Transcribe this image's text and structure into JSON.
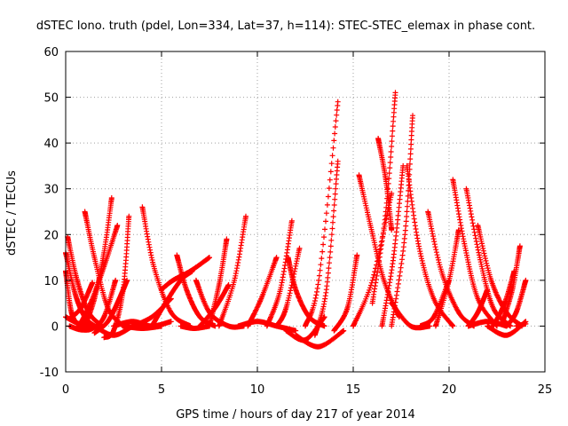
{
  "chart_data": {
    "type": "scatter",
    "title": "dSTEC Iono. truth (pdel, Lon=334, Lat=37, h=114): STEC-STEC_elemax in phase cont.",
    "xlabel": "GPS time / hours of day 217 of year 2014",
    "ylabel": "dSTEC  / TECUs",
    "xlim": [
      0,
      25
    ],
    "ylim": [
      -10,
      60
    ],
    "xticks": [
      0,
      5,
      10,
      15,
      20,
      25
    ],
    "yticks": [
      -10,
      0,
      10,
      20,
      30,
      40,
      50,
      60
    ],
    "grid": true,
    "marker": "plus",
    "color": "#ff0000",
    "arcs": [
      {
        "x": [
          0.0,
          0.3,
          0.7,
          1.2
        ],
        "y": [
          12,
          3,
          0.3,
          0
        ]
      },
      {
        "x": [
          0.0,
          0.5,
          1.0,
          1.5
        ],
        "y": [
          16,
          7,
          2,
          0
        ]
      },
      {
        "x": [
          0.1,
          0.6,
          1.2,
          1.9
        ],
        "y": [
          19.5,
          10,
          3,
          0
        ]
      },
      {
        "x": [
          0.0,
          0.7,
          1.5
        ],
        "y": [
          2,
          0.5,
          0
        ]
      },
      {
        "x": [
          0.2,
          0.8,
          1.4,
          2.0,
          2.6
        ],
        "y": [
          0,
          -0.8,
          -0.5,
          2,
          10
        ]
      },
      {
        "x": [
          0.3,
          0.8,
          1.4
        ],
        "y": [
          2,
          4,
          9.5
        ]
      },
      {
        "x": [
          1.0,
          1.5,
          2.2,
          3.0
        ],
        "y": [
          25,
          15,
          4,
          0
        ]
      },
      {
        "x": [
          0.7,
          1.3,
          2.0,
          2.7
        ],
        "y": [
          0,
          5,
          13,
          22
        ]
      },
      {
        "x": [
          1.5,
          2.2,
          2.8,
          3.2
        ],
        "y": [
          -1.5,
          1,
          6,
          10
        ]
      },
      {
        "x": [
          1.0,
          1.5,
          2.0,
          2.4
        ],
        "y": [
          0,
          6,
          16,
          28
        ]
      },
      {
        "x": [
          2.0,
          2.5,
          3.0,
          3.3
        ],
        "y": [
          -2.5,
          -1,
          8,
          24
        ]
      },
      {
        "x": [
          1.5,
          2.5,
          3.5
        ],
        "y": [
          0,
          -2,
          0
        ]
      },
      {
        "x": [
          2.5,
          3.5,
          4.5,
          5.5
        ],
        "y": [
          0,
          1,
          0,
          1
        ]
      },
      {
        "x": [
          3.0,
          4.0,
          5.0
        ],
        "y": [
          0,
          -0.5,
          0
        ]
      },
      {
        "x": [
          4.0,
          4.6,
          5.5,
          6.5
        ],
        "y": [
          26,
          13,
          3,
          0
        ]
      },
      {
        "x": [
          4.5,
          5.2,
          6.0,
          6.6
        ],
        "y": [
          0,
          5,
          10,
          12
        ]
      },
      {
        "x": [
          3.5,
          4.5,
          5.5
        ],
        "y": [
          0,
          2,
          6
        ]
      },
      {
        "x": [
          5.0,
          5.6,
          6.5,
          7.5
        ],
        "y": [
          8,
          10,
          12,
          15
        ]
      },
      {
        "x": [
          5.8,
          6.3,
          7.0,
          7.8
        ],
        "y": [
          15.5,
          8,
          2,
          0
        ]
      },
      {
        "x": [
          6.0,
          6.7,
          7.5
        ],
        "y": [
          0,
          -0.5,
          0
        ]
      },
      {
        "x": [
          6.8,
          7.5,
          8.5,
          9.3
        ],
        "y": [
          10,
          3,
          0,
          0
        ]
      },
      {
        "x": [
          7.0,
          7.8,
          8.5
        ],
        "y": [
          0,
          4,
          9
        ]
      },
      {
        "x": [
          7.5,
          8.0,
          8.4
        ],
        "y": [
          0,
          9,
          19
        ]
      },
      {
        "x": [
          8.0,
          8.8,
          9.4
        ],
        "y": [
          0,
          10,
          24
        ]
      },
      {
        "x": [
          9.5,
          10.2,
          11.0
        ],
        "y": [
          0,
          6,
          15
        ]
      },
      {
        "x": [
          9.0,
          10.0,
          11.0,
          12.0
        ],
        "y": [
          0,
          1,
          0,
          -1
        ]
      },
      {
        "x": [
          10.5,
          11.2,
          11.8
        ],
        "y": [
          0,
          8,
          23
        ]
      },
      {
        "x": [
          11.0,
          11.5,
          12.2
        ],
        "y": [
          0,
          4,
          17
        ]
      },
      {
        "x": [
          11.5,
          12.5,
          13.5
        ],
        "y": [
          -1,
          -3,
          2
        ]
      },
      {
        "x": [
          12.0,
          13.2,
          14.5
        ],
        "y": [
          -2,
          -4.5,
          -1
        ]
      },
      {
        "x": [
          11.6,
          12.0,
          12.7,
          13.5
        ],
        "y": [
          15,
          8,
          2,
          0
        ]
      },
      {
        "x": [
          12.5,
          13.2,
          14.2
        ],
        "y": [
          0,
          10,
          49
        ]
      },
      {
        "x": [
          13.0,
          13.6,
          14.2
        ],
        "y": [
          -2,
          8,
          36
        ]
      },
      {
        "x": [
          14.0,
          14.7,
          15.2
        ],
        "y": [
          -1,
          4,
          15.5
        ]
      },
      {
        "x": [
          15.3,
          15.9,
          16.6,
          17.4
        ],
        "y": [
          33,
          22,
          10,
          2
        ]
      },
      {
        "x": [
          15.0,
          16.0,
          17.0
        ],
        "y": [
          0,
          10,
          29
        ]
      },
      {
        "x": [
          16.3,
          16.7,
          17.0
        ],
        "y": [
          41,
          32,
          21
        ]
      },
      {
        "x": [
          16.0,
          16.7,
          17.2
        ],
        "y": [
          5,
          25,
          51
        ]
      },
      {
        "x": [
          16.5,
          17.1,
          17.6
        ],
        "y": [
          0,
          15,
          35
        ]
      },
      {
        "x": [
          17.0,
          17.7,
          18.1
        ],
        "y": [
          0,
          20,
          46
        ]
      },
      {
        "x": [
          17.8,
          18.4,
          19.2,
          20.2
        ],
        "y": [
          35,
          18,
          6,
          0
        ]
      },
      {
        "x": [
          17.0,
          18.0,
          19.0
        ],
        "y": [
          5,
          0,
          0
        ]
      },
      {
        "x": [
          18.5,
          19.2,
          20.0
        ],
        "y": [
          0,
          2,
          10
        ]
      },
      {
        "x": [
          18.9,
          19.6,
          20.5,
          21.3
        ],
        "y": [
          25,
          12,
          3,
          0
        ]
      },
      {
        "x": [
          19.3,
          20.0,
          20.5
        ],
        "y": [
          0,
          10,
          21
        ]
      },
      {
        "x": [
          20.2,
          20.8,
          21.5,
          22.5
        ],
        "y": [
          32,
          18,
          6,
          0
        ]
      },
      {
        "x": [
          20.9,
          21.6,
          22.3,
          23.2
        ],
        "y": [
          30,
          15,
          4,
          0
        ]
      },
      {
        "x": [
          21.5,
          22.2,
          23.0,
          23.8
        ],
        "y": [
          22,
          10,
          3,
          0
        ]
      },
      {
        "x": [
          21.0,
          22.0,
          23.0
        ],
        "y": [
          0,
          1,
          0
        ]
      },
      {
        "x": [
          22.0,
          23.0,
          24.0
        ],
        "y": [
          0,
          -2,
          1
        ]
      },
      {
        "x": [
          22.3,
          22.9,
          23.4
        ],
        "y": [
          0,
          5,
          12
        ]
      },
      {
        "x": [
          22.8,
          23.3,
          23.7
        ],
        "y": [
          1,
          8,
          17.5
        ]
      },
      {
        "x": [
          23.0,
          23.5,
          24.0
        ],
        "y": [
          0,
          3,
          10
        ]
      },
      {
        "x": [
          21.0,
          21.5,
          22.0
        ],
        "y": [
          0,
          3,
          8
        ]
      },
      {
        "x": [
          23.5,
          24.0
        ],
        "y": [
          0,
          0.5
        ]
      }
    ]
  }
}
